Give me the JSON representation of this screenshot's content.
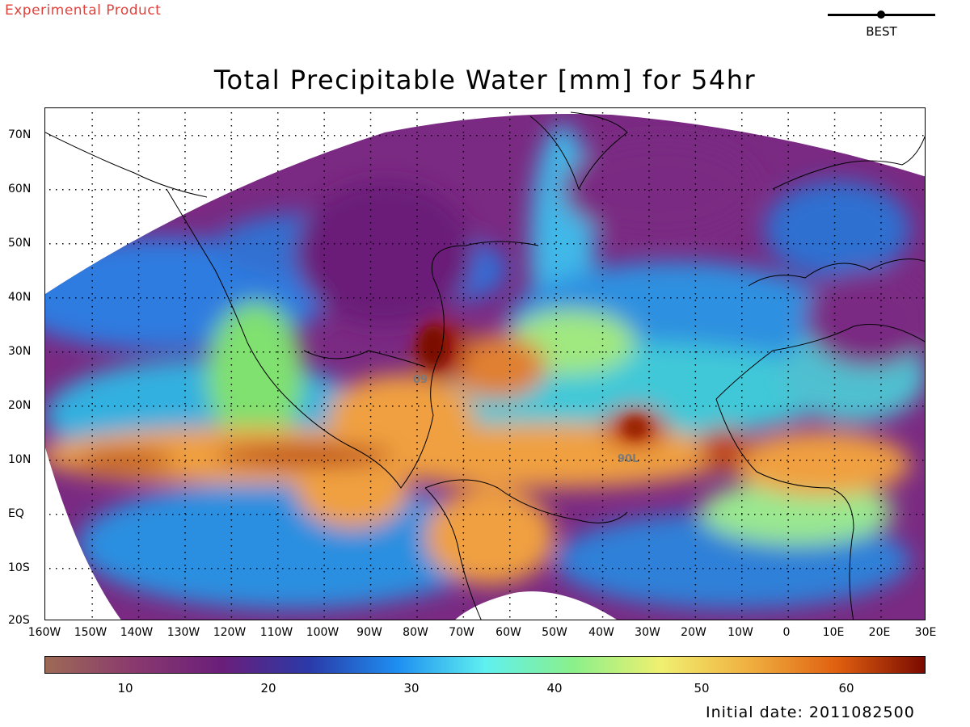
{
  "header": {
    "product_label": "Experimental Product",
    "track_legend_label": "BEST",
    "title": "Total Precipitable Water [mm] for 54hr"
  },
  "map": {
    "lat_labels": [
      "70N",
      "60N",
      "50N",
      "40N",
      "30N",
      "20N",
      "10N",
      "EQ",
      "10S",
      "20S"
    ],
    "lon_labels": [
      "160W",
      "150W",
      "140W",
      "130W",
      "120W",
      "110W",
      "100W",
      "90W",
      "80W",
      "70W",
      "60W",
      "50W",
      "40W",
      "30W",
      "20W",
      "10W",
      "0",
      "10E",
      "20E",
      "30E"
    ],
    "storm_labels": [
      {
        "id": "09L",
        "text": "09"
      },
      {
        "id": "90L",
        "text": "90L"
      }
    ]
  },
  "colorbar": {
    "labels": [
      "10",
      "20",
      "30",
      "40",
      "50",
      "60"
    ],
    "stops": [
      "#9d6a55",
      "#8a3a6e",
      "#6a1e7a",
      "#2a3aa8",
      "#1e8ef0",
      "#5ff0f0",
      "#8af08a",
      "#f0f070",
      "#f0b040",
      "#e06010",
      "#7a0a00"
    ]
  },
  "footer": {
    "initial_date": "Initial date: 2011082500"
  }
}
